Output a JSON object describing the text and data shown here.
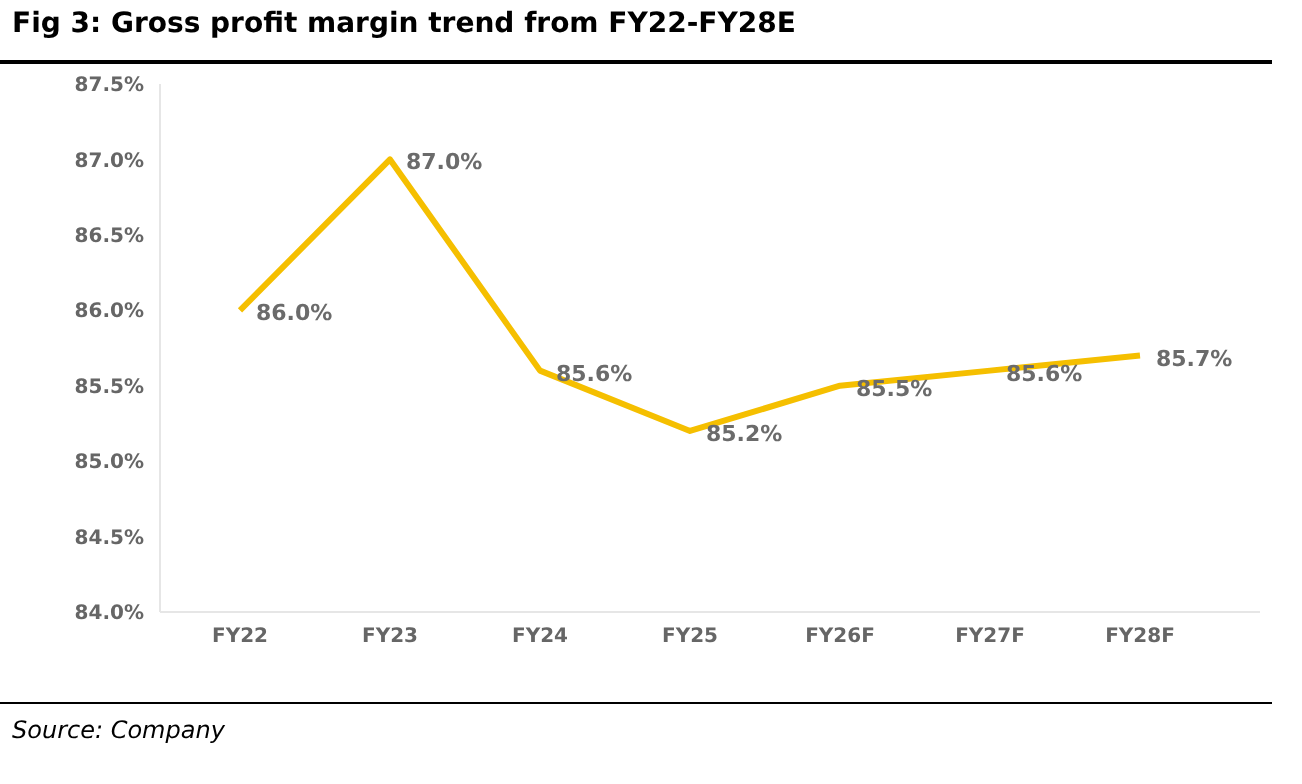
{
  "chart_data": {
    "type": "line",
    "title": "Fig 3: Gross profit margin trend from FY22-FY28E",
    "categories": [
      "FY22",
      "FY23",
      "FY24",
      "FY25",
      "FY26F",
      "FY27F",
      "FY28F"
    ],
    "series": [
      {
        "color": "#f5bf00",
        "values": [
          86.0,
          87.0,
          85.6,
          85.2,
          85.5,
          85.6,
          85.7
        ],
        "value_labels": [
          "86.0%",
          "87.0%",
          "85.6%",
          "85.2%",
          "85.5%",
          "85.6%",
          "85.7%"
        ]
      }
    ],
    "ylim": [
      84.0,
      87.5
    ],
    "yticks": [
      {
        "value": 84.0,
        "label": "84.0%"
      },
      {
        "value": 84.5,
        "label": "84.5%"
      },
      {
        "value": 85.0,
        "label": "85.0%"
      },
      {
        "value": 85.5,
        "label": "85.5%"
      },
      {
        "value": 86.0,
        "label": "86.0%"
      },
      {
        "value": 86.5,
        "label": "86.5%"
      },
      {
        "value": 87.0,
        "label": "87.0%"
      },
      {
        "value": 87.5,
        "label": "87.5%"
      }
    ],
    "grid": false,
    "legend": false,
    "marker": "none",
    "line_style": "solid",
    "annotations": [
      "Source: Company"
    ]
  }
}
